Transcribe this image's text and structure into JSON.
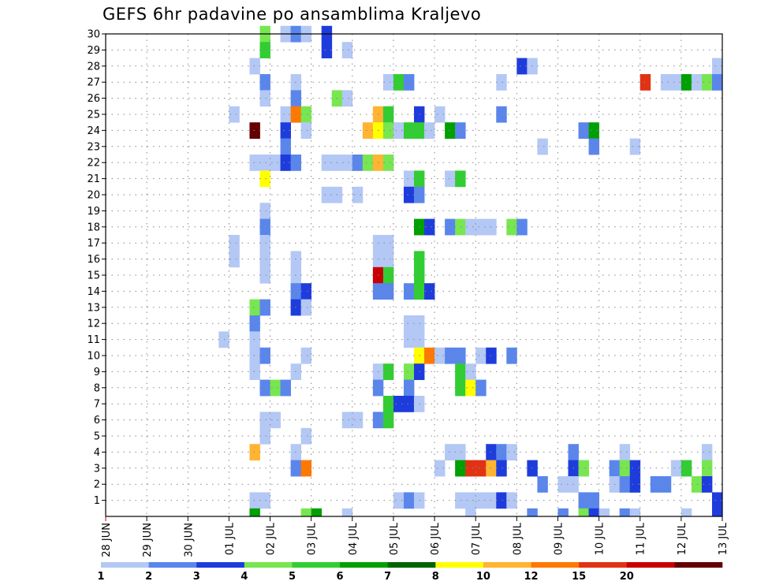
{
  "chart_data": {
    "type": "heatmap",
    "title": "GEFS 6hr padavine po ansamblima Kraljevo",
    "xlabel": "",
    "ylabel": "",
    "x_ticks": [
      "28 JUN",
      "29 JUN",
      "30 JUN",
      "01 JUL",
      "02 JUL",
      "03 JUL",
      "04 JUL",
      "05 JUL",
      "06 JUL",
      "07 JUL",
      "08 JUL",
      "09 JUL",
      "10 JUL",
      "11 JUL",
      "12 JUL",
      "13 JUL"
    ],
    "y_ticks": [
      "1",
      "2",
      "3",
      "4",
      "5",
      "6",
      "7",
      "8",
      "9",
      "10",
      "11",
      "12",
      "13",
      "14",
      "15",
      "16",
      "17",
      "18",
      "19",
      "20",
      "21",
      "22",
      "23",
      "24",
      "25",
      "26",
      "27",
      "28",
      "29",
      "30"
    ],
    "y_range": [
      0,
      30
    ],
    "grid": true,
    "legend_placement": "bottom",
    "colorbar": {
      "labels": [
        "1",
        "2",
        "3",
        "4",
        "5",
        "6",
        "7",
        "8",
        "10",
        "12",
        "15",
        "20"
      ],
      "colors": [
        "#b4c8f5",
        "#5a86ec",
        "#1e3cdc",
        "#78e650",
        "#32cd32",
        "#00a000",
        "#006400",
        "#ffff00",
        "#ffb432",
        "#ff7800",
        "#e13214",
        "#c80000",
        "#640000"
      ]
    },
    "cells_note_x_units": "x = time step index, 4 steps per day starting at 28 JUN 00Z; y = ensemble member; c = color class index (0..12)",
    "cells": [
      {
        "x": 15,
        "y": 30,
        "c": 3
      },
      {
        "x": 17,
        "y": 30,
        "c": 0
      },
      {
        "x": 18,
        "y": 30,
        "c": 1
      },
      {
        "x": 19,
        "y": 30,
        "c": 0
      },
      {
        "x": 21,
        "y": 30,
        "c": 2
      },
      {
        "x": 15,
        "y": 29,
        "c": 4
      },
      {
        "x": 21,
        "y": 29,
        "c": 2
      },
      {
        "x": 23,
        "y": 29,
        "c": 0
      },
      {
        "x": 14,
        "y": 28,
        "c": 0
      },
      {
        "x": 40,
        "y": 28,
        "c": 2
      },
      {
        "x": 41,
        "y": 28,
        "c": 0
      },
      {
        "x": 59,
        "y": 28,
        "c": 0
      },
      {
        "x": 15,
        "y": 27,
        "c": 1
      },
      {
        "x": 18,
        "y": 27,
        "c": 0
      },
      {
        "x": 27,
        "y": 27,
        "c": 0
      },
      {
        "x": 28,
        "y": 27,
        "c": 4
      },
      {
        "x": 29,
        "y": 27,
        "c": 1
      },
      {
        "x": 38,
        "y": 27,
        "c": 0
      },
      {
        "x": 52,
        "y": 27,
        "c": 10
      },
      {
        "x": 54,
        "y": 27,
        "c": 0
      },
      {
        "x": 55,
        "y": 27,
        "c": 0
      },
      {
        "x": 56,
        "y": 27,
        "c": 5
      },
      {
        "x": 57,
        "y": 27,
        "c": 0
      },
      {
        "x": 58,
        "y": 27,
        "c": 3
      },
      {
        "x": 59,
        "y": 27,
        "c": 1
      },
      {
        "x": 15,
        "y": 26,
        "c": 0
      },
      {
        "x": 18,
        "y": 26,
        "c": 1
      },
      {
        "x": 22,
        "y": 26,
        "c": 3
      },
      {
        "x": 23,
        "y": 26,
        "c": 0
      },
      {
        "x": 12,
        "y": 25,
        "c": 0
      },
      {
        "x": 17,
        "y": 25,
        "c": 0
      },
      {
        "x": 18,
        "y": 25,
        "c": 9
      },
      {
        "x": 19,
        "y": 25,
        "c": 3
      },
      {
        "x": 26,
        "y": 25,
        "c": 8
      },
      {
        "x": 27,
        "y": 25,
        "c": 4
      },
      {
        "x": 30,
        "y": 25,
        "c": 2
      },
      {
        "x": 32,
        "y": 25,
        "c": 0
      },
      {
        "x": 38,
        "y": 25,
        "c": 1
      },
      {
        "x": 14,
        "y": 24,
        "c": 12
      },
      {
        "x": 17,
        "y": 24,
        "c": 2
      },
      {
        "x": 19,
        "y": 24,
        "c": 0
      },
      {
        "x": 25,
        "y": 24,
        "c": 8
      },
      {
        "x": 26,
        "y": 24,
        "c": 7
      },
      {
        "x": 27,
        "y": 24,
        "c": 3
      },
      {
        "x": 28,
        "y": 24,
        "c": 0
      },
      {
        "x": 29,
        "y": 24,
        "c": 4
      },
      {
        "x": 30,
        "y": 24,
        "c": 4
      },
      {
        "x": 31,
        "y": 24,
        "c": 0
      },
      {
        "x": 33,
        "y": 24,
        "c": 5
      },
      {
        "x": 34,
        "y": 24,
        "c": 1
      },
      {
        "x": 46,
        "y": 24,
        "c": 1
      },
      {
        "x": 47,
        "y": 24,
        "c": 5
      },
      {
        "x": 17,
        "y": 23,
        "c": 1
      },
      {
        "x": 42,
        "y": 23,
        "c": 0
      },
      {
        "x": 47,
        "y": 23,
        "c": 1
      },
      {
        "x": 51,
        "y": 23,
        "c": 0
      },
      {
        "x": 14,
        "y": 22,
        "c": 0
      },
      {
        "x": 15,
        "y": 22,
        "c": 0
      },
      {
        "x": 16,
        "y": 22,
        "c": 0
      },
      {
        "x": 17,
        "y": 22,
        "c": 2
      },
      {
        "x": 18,
        "y": 22,
        "c": 1
      },
      {
        "x": 21,
        "y": 22,
        "c": 0
      },
      {
        "x": 22,
        "y": 22,
        "c": 0
      },
      {
        "x": 23,
        "y": 22,
        "c": 0
      },
      {
        "x": 24,
        "y": 22,
        "c": 1
      },
      {
        "x": 25,
        "y": 22,
        "c": 3
      },
      {
        "x": 26,
        "y": 22,
        "c": 8
      },
      {
        "x": 27,
        "y": 22,
        "c": 3
      },
      {
        "x": 15,
        "y": 21,
        "c": 7
      },
      {
        "x": 29,
        "y": 21,
        "c": 0
      },
      {
        "x": 30,
        "y": 21,
        "c": 4
      },
      {
        "x": 33,
        "y": 21,
        "c": 0
      },
      {
        "x": 34,
        "y": 21,
        "c": 4
      },
      {
        "x": 21,
        "y": 20,
        "c": 0
      },
      {
        "x": 22,
        "y": 20,
        "c": 0
      },
      {
        "x": 24,
        "y": 20,
        "c": 0
      },
      {
        "x": 29,
        "y": 20,
        "c": 2
      },
      {
        "x": 30,
        "y": 20,
        "c": 1
      },
      {
        "x": 15,
        "y": 19,
        "c": 0
      },
      {
        "x": 15,
        "y": 18,
        "c": 1
      },
      {
        "x": 30,
        "y": 18,
        "c": 5
      },
      {
        "x": 31,
        "y": 18,
        "c": 2
      },
      {
        "x": 33,
        "y": 18,
        "c": 1
      },
      {
        "x": 34,
        "y": 18,
        "c": 3
      },
      {
        "x": 35,
        "y": 18,
        "c": 0
      },
      {
        "x": 36,
        "y": 18,
        "c": 0
      },
      {
        "x": 37,
        "y": 18,
        "c": 0
      },
      {
        "x": 39,
        "y": 18,
        "c": 3
      },
      {
        "x": 40,
        "y": 18,
        "c": 1
      },
      {
        "x": 15,
        "y": 17,
        "c": 0
      },
      {
        "x": 12,
        "y": 17,
        "c": 0
      },
      {
        "x": 26,
        "y": 17,
        "c": 0
      },
      {
        "x": 27,
        "y": 17,
        "c": 0
      },
      {
        "x": 15,
        "y": 16,
        "c": 0
      },
      {
        "x": 12,
        "y": 16,
        "c": 0
      },
      {
        "x": 18,
        "y": 16,
        "c": 0
      },
      {
        "x": 26,
        "y": 16,
        "c": 0
      },
      {
        "x": 27,
        "y": 16,
        "c": 0
      },
      {
        "x": 30,
        "y": 16,
        "c": 4
      },
      {
        "x": 15,
        "y": 15,
        "c": 0
      },
      {
        "x": 18,
        "y": 15,
        "c": 0
      },
      {
        "x": 26,
        "y": 15,
        "c": 11
      },
      {
        "x": 27,
        "y": 15,
        "c": 4
      },
      {
        "x": 30,
        "y": 15,
        "c": 4
      },
      {
        "x": 18,
        "y": 14,
        "c": 1
      },
      {
        "x": 19,
        "y": 14,
        "c": 2
      },
      {
        "x": 26,
        "y": 14,
        "c": 1
      },
      {
        "x": 27,
        "y": 14,
        "c": 1
      },
      {
        "x": 29,
        "y": 14,
        "c": 1
      },
      {
        "x": 30,
        "y": 14,
        "c": 4
      },
      {
        "x": 31,
        "y": 14,
        "c": 2
      },
      {
        "x": 14,
        "y": 13,
        "c": 3
      },
      {
        "x": 15,
        "y": 13,
        "c": 1
      },
      {
        "x": 18,
        "y": 13,
        "c": 2
      },
      {
        "x": 19,
        "y": 13,
        "c": 0
      },
      {
        "x": 14,
        "y": 12,
        "c": 1
      },
      {
        "x": 29,
        "y": 12,
        "c": 0
      },
      {
        "x": 30,
        "y": 12,
        "c": 0
      },
      {
        "x": 14,
        "y": 11,
        "c": 0
      },
      {
        "x": 11,
        "y": 11,
        "c": 0
      },
      {
        "x": 29,
        "y": 11,
        "c": 0
      },
      {
        "x": 30,
        "y": 11,
        "c": 0
      },
      {
        "x": 14,
        "y": 10,
        "c": 0
      },
      {
        "x": 15,
        "y": 10,
        "c": 1
      },
      {
        "x": 19,
        "y": 10,
        "c": 0
      },
      {
        "x": 30,
        "y": 10,
        "c": 7
      },
      {
        "x": 31,
        "y": 10,
        "c": 9
      },
      {
        "x": 32,
        "y": 10,
        "c": 0
      },
      {
        "x": 33,
        "y": 10,
        "c": 1
      },
      {
        "x": 34,
        "y": 10,
        "c": 1
      },
      {
        "x": 36,
        "y": 10,
        "c": 0
      },
      {
        "x": 37,
        "y": 10,
        "c": 2
      },
      {
        "x": 39,
        "y": 10,
        "c": 1
      },
      {
        "x": 14,
        "y": 9,
        "c": 0
      },
      {
        "x": 18,
        "y": 9,
        "c": 0
      },
      {
        "x": 26,
        "y": 9,
        "c": 0
      },
      {
        "x": 27,
        "y": 9,
        "c": 4
      },
      {
        "x": 29,
        "y": 9,
        "c": 3
      },
      {
        "x": 30,
        "y": 9,
        "c": 2
      },
      {
        "x": 34,
        "y": 9,
        "c": 4
      },
      {
        "x": 35,
        "y": 9,
        "c": 0
      },
      {
        "x": 15,
        "y": 8,
        "c": 1
      },
      {
        "x": 16,
        "y": 8,
        "c": 3
      },
      {
        "x": 17,
        "y": 8,
        "c": 1
      },
      {
        "x": 26,
        "y": 8,
        "c": 1
      },
      {
        "x": 29,
        "y": 8,
        "c": 1
      },
      {
        "x": 34,
        "y": 8,
        "c": 4
      },
      {
        "x": 35,
        "y": 8,
        "c": 7
      },
      {
        "x": 36,
        "y": 8,
        "c": 1
      },
      {
        "x": 27,
        "y": 7,
        "c": 4
      },
      {
        "x": 28,
        "y": 7,
        "c": 2
      },
      {
        "x": 29,
        "y": 7,
        "c": 2
      },
      {
        "x": 30,
        "y": 7,
        "c": 0
      },
      {
        "x": 15,
        "y": 6,
        "c": 0
      },
      {
        "x": 16,
        "y": 6,
        "c": 0
      },
      {
        "x": 23,
        "y": 6,
        "c": 0
      },
      {
        "x": 24,
        "y": 6,
        "c": 0
      },
      {
        "x": 26,
        "y": 6,
        "c": 1
      },
      {
        "x": 27,
        "y": 6,
        "c": 4
      },
      {
        "x": 15,
        "y": 5,
        "c": 0
      },
      {
        "x": 19,
        "y": 5,
        "c": 0
      },
      {
        "x": 14,
        "y": 4,
        "c": 8
      },
      {
        "x": 18,
        "y": 4,
        "c": 0
      },
      {
        "x": 33,
        "y": 4,
        "c": 0
      },
      {
        "x": 34,
        "y": 4,
        "c": 0
      },
      {
        "x": 37,
        "y": 4,
        "c": 2
      },
      {
        "x": 38,
        "y": 4,
        "c": 1
      },
      {
        "x": 39,
        "y": 4,
        "c": 0
      },
      {
        "x": 45,
        "y": 4,
        "c": 1
      },
      {
        "x": 50,
        "y": 4,
        "c": 0
      },
      {
        "x": 58,
        "y": 4,
        "c": 0
      },
      {
        "x": 18,
        "y": 3,
        "c": 1
      },
      {
        "x": 19,
        "y": 3,
        "c": 9
      },
      {
        "x": 32,
        "y": 3,
        "c": 0
      },
      {
        "x": 34,
        "y": 3,
        "c": 5
      },
      {
        "x": 35,
        "y": 3,
        "c": 10
      },
      {
        "x": 36,
        "y": 3,
        "c": 10
      },
      {
        "x": 37,
        "y": 3,
        "c": 8
      },
      {
        "x": 38,
        "y": 3,
        "c": 2
      },
      {
        "x": 41,
        "y": 3,
        "c": 2
      },
      {
        "x": 45,
        "y": 3,
        "c": 2
      },
      {
        "x": 46,
        "y": 3,
        "c": 3
      },
      {
        "x": 49,
        "y": 3,
        "c": 1
      },
      {
        "x": 50,
        "y": 3,
        "c": 3
      },
      {
        "x": 51,
        "y": 3,
        "c": 2
      },
      {
        "x": 55,
        "y": 3,
        "c": 0
      },
      {
        "x": 56,
        "y": 3,
        "c": 4
      },
      {
        "x": 58,
        "y": 3,
        "c": 3
      },
      {
        "x": 42,
        "y": 2,
        "c": 1
      },
      {
        "x": 44,
        "y": 2,
        "c": 0
      },
      {
        "x": 45,
        "y": 2,
        "c": 0
      },
      {
        "x": 49,
        "y": 2,
        "c": 0
      },
      {
        "x": 50,
        "y": 2,
        "c": 1
      },
      {
        "x": 51,
        "y": 2,
        "c": 2
      },
      {
        "x": 53,
        "y": 2,
        "c": 1
      },
      {
        "x": 54,
        "y": 2,
        "c": 1
      },
      {
        "x": 57,
        "y": 2,
        "c": 3
      },
      {
        "x": 58,
        "y": 2,
        "c": 2
      },
      {
        "x": 14,
        "y": 1,
        "c": 0
      },
      {
        "x": 15,
        "y": 1,
        "c": 0
      },
      {
        "x": 28,
        "y": 1,
        "c": 0
      },
      {
        "x": 29,
        "y": 1,
        "c": 1
      },
      {
        "x": 30,
        "y": 1,
        "c": 0
      },
      {
        "x": 34,
        "y": 1,
        "c": 0
      },
      {
        "x": 35,
        "y": 1,
        "c": 0
      },
      {
        "x": 36,
        "y": 1,
        "c": 0
      },
      {
        "x": 37,
        "y": 1,
        "c": 0
      },
      {
        "x": 38,
        "y": 1,
        "c": 2
      },
      {
        "x": 39,
        "y": 1,
        "c": 0
      },
      {
        "x": 46,
        "y": 1,
        "c": 1
      },
      {
        "x": 47,
        "y": 1,
        "c": 1
      },
      {
        "x": 59,
        "y": 1,
        "c": 2
      },
      {
        "x": 14,
        "y": 0,
        "c": 5
      },
      {
        "x": 19,
        "y": 0,
        "c": 3
      },
      {
        "x": 20,
        "y": 0,
        "c": 5
      },
      {
        "x": 23,
        "y": 0,
        "c": 0
      },
      {
        "x": 35,
        "y": 0,
        "c": 0
      },
      {
        "x": 41,
        "y": 0,
        "c": 1
      },
      {
        "x": 44,
        "y": 0,
        "c": 1
      },
      {
        "x": 46,
        "y": 0,
        "c": 3
      },
      {
        "x": 47,
        "y": 0,
        "c": 2
      },
      {
        "x": 48,
        "y": 0,
        "c": 0
      },
      {
        "x": 50,
        "y": 0,
        "c": 1
      },
      {
        "x": 51,
        "y": 0,
        "c": 0
      },
      {
        "x": 56,
        "y": 0,
        "c": 0
      },
      {
        "x": 59,
        "y": 0,
        "c": 2
      }
    ]
  }
}
